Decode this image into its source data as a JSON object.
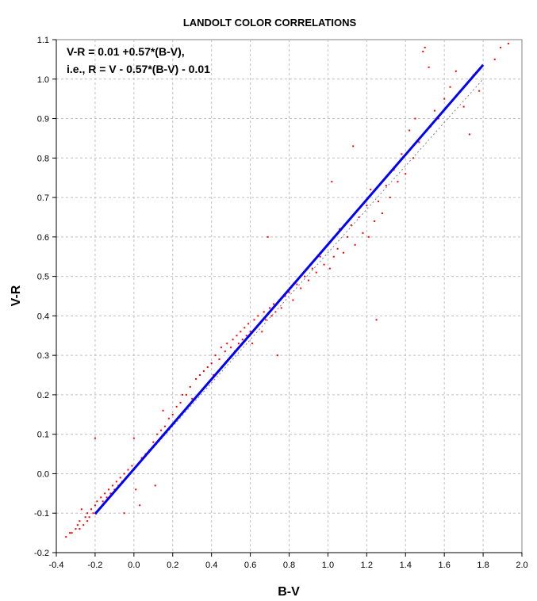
{
  "chart_data": {
    "type": "scatter",
    "title": "LANDOLT COLOR CORRELATIONS",
    "xlabel": "B-V",
    "ylabel": "V-R",
    "xlim": [
      -0.4,
      2.0
    ],
    "ylim": [
      -0.2,
      1.1
    ],
    "x_ticks": [
      "-0.4",
      "-0.2",
      "0.0",
      "0.2",
      "0.4",
      "0.6",
      "0.8",
      "1.0",
      "1.2",
      "1.4",
      "1.6",
      "1.8",
      "2.0"
    ],
    "y_ticks": [
      "-0.2",
      "-0.1",
      "0.0",
      "0.1",
      "0.2",
      "0.3",
      "0.4",
      "0.5",
      "0.6",
      "0.7",
      "0.8",
      "0.9",
      "1.0",
      "1.1"
    ],
    "grid": true,
    "annotations": [
      "V-R = 0.01 +0.57*(B-V),",
      "i.e., R = V - 0.57*(B-V) - 0.01"
    ],
    "fit_line": {
      "x": [
        -0.2,
        1.8
      ],
      "y": [
        -0.102,
        1.036
      ],
      "color": "#0000ff"
    },
    "reference_line": {
      "x": [
        -0.2,
        1.8
      ],
      "y": [
        -0.1,
        1.0
      ],
      "color": "#808080"
    },
    "series": [
      {
        "color": "#ff0000",
        "points": [
          [
            -0.35,
            -0.16
          ],
          [
            -0.33,
            -0.15
          ],
          [
            -0.32,
            -0.15
          ],
          [
            -0.3,
            -0.14
          ],
          [
            -0.29,
            -0.13
          ],
          [
            -0.28,
            -0.12
          ],
          [
            -0.28,
            -0.14
          ],
          [
            -0.27,
            -0.09
          ],
          [
            -0.26,
            -0.13
          ],
          [
            -0.25,
            -0.11
          ],
          [
            -0.24,
            -0.12
          ],
          [
            -0.24,
            -0.1
          ],
          [
            -0.23,
            -0.11
          ],
          [
            -0.22,
            -0.09
          ],
          [
            -0.21,
            -0.1
          ],
          [
            -0.2,
            -0.08
          ],
          [
            -0.2,
            0.09
          ],
          [
            -0.19,
            -0.07
          ],
          [
            -0.18,
            -0.09
          ],
          [
            -0.17,
            -0.06
          ],
          [
            -0.16,
            -0.07
          ],
          [
            -0.15,
            -0.05
          ],
          [
            -0.14,
            -0.06
          ],
          [
            -0.13,
            -0.04
          ],
          [
            -0.12,
            -0.05
          ],
          [
            -0.11,
            -0.03
          ],
          [
            -0.1,
            -0.04
          ],
          [
            -0.09,
            -0.02
          ],
          [
            -0.08,
            -0.03
          ],
          [
            -0.07,
            -0.01
          ],
          [
            -0.06,
            -0.02
          ],
          [
            -0.05,
            0.0
          ],
          [
            -0.05,
            -0.1
          ],
          [
            -0.04,
            -0.01
          ],
          [
            -0.03,
            0.01
          ],
          [
            -0.02,
            0.0
          ],
          [
            -0.01,
            0.02
          ],
          [
            0.0,
            0.01
          ],
          [
            0.0,
            0.09
          ],
          [
            0.01,
            -0.04
          ],
          [
            0.03,
            -0.08
          ],
          [
            0.04,
            0.04
          ],
          [
            0.06,
            0.05
          ],
          [
            0.08,
            0.06
          ],
          [
            0.1,
            0.08
          ],
          [
            0.11,
            -0.03
          ],
          [
            0.12,
            0.1
          ],
          [
            0.14,
            0.11
          ],
          [
            0.15,
            0.16
          ],
          [
            0.16,
            0.12
          ],
          [
            0.18,
            0.14
          ],
          [
            0.2,
            0.15
          ],
          [
            0.22,
            0.17
          ],
          [
            0.24,
            0.18
          ],
          [
            0.25,
            0.2
          ],
          [
            0.27,
            0.2
          ],
          [
            0.29,
            0.22
          ],
          [
            0.3,
            0.19
          ],
          [
            0.32,
            0.24
          ],
          [
            0.34,
            0.25
          ],
          [
            0.36,
            0.26
          ],
          [
            0.38,
            0.27
          ],
          [
            0.4,
            0.28
          ],
          [
            0.41,
            0.25
          ],
          [
            0.42,
            0.3
          ],
          [
            0.44,
            0.29
          ],
          [
            0.45,
            0.32
          ],
          [
            0.47,
            0.31
          ],
          [
            0.48,
            0.33
          ],
          [
            0.5,
            0.32
          ],
          [
            0.51,
            0.34
          ],
          [
            0.52,
            0.31
          ],
          [
            0.53,
            0.35
          ],
          [
            0.54,
            0.33
          ],
          [
            0.55,
            0.36
          ],
          [
            0.56,
            0.34
          ],
          [
            0.57,
            0.37
          ],
          [
            0.58,
            0.35
          ],
          [
            0.59,
            0.38
          ],
          [
            0.6,
            0.36
          ],
          [
            0.61,
            0.33
          ],
          [
            0.62,
            0.39
          ],
          [
            0.63,
            0.37
          ],
          [
            0.64,
            0.4
          ],
          [
            0.65,
            0.38
          ],
          [
            0.66,
            0.36
          ],
          [
            0.67,
            0.41
          ],
          [
            0.68,
            0.39
          ],
          [
            0.69,
            0.6
          ],
          [
            0.7,
            0.42
          ],
          [
            0.71,
            0.4
          ],
          [
            0.72,
            0.43
          ],
          [
            0.73,
            0.41
          ],
          [
            0.74,
            0.3
          ],
          [
            0.75,
            0.44
          ],
          [
            0.76,
            0.42
          ],
          [
            0.78,
            0.45
          ],
          [
            0.8,
            0.46
          ],
          [
            0.82,
            0.44
          ],
          [
            0.84,
            0.48
          ],
          [
            0.86,
            0.47
          ],
          [
            0.88,
            0.5
          ],
          [
            0.9,
            0.49
          ],
          [
            0.92,
            0.52
          ],
          [
            0.94,
            0.51
          ],
          [
            0.96,
            0.55
          ],
          [
            0.98,
            0.53
          ],
          [
            1.0,
            0.58
          ],
          [
            1.01,
            0.52
          ],
          [
            1.02,
            0.74
          ],
          [
            1.03,
            0.55
          ],
          [
            1.05,
            0.57
          ],
          [
            1.06,
            0.62
          ],
          [
            1.08,
            0.56
          ],
          [
            1.1,
            0.6
          ],
          [
            1.12,
            0.63
          ],
          [
            1.13,
            0.83
          ],
          [
            1.14,
            0.58
          ],
          [
            1.16,
            0.65
          ],
          [
            1.18,
            0.61
          ],
          [
            1.2,
            0.68
          ],
          [
            1.21,
            0.6
          ],
          [
            1.22,
            0.72
          ],
          [
            1.24,
            0.64
          ],
          [
            1.25,
            0.39
          ],
          [
            1.26,
            0.69
          ],
          [
            1.28,
            0.66
          ],
          [
            1.3,
            0.73
          ],
          [
            1.32,
            0.7
          ],
          [
            1.34,
            0.77
          ],
          [
            1.36,
            0.74
          ],
          [
            1.38,
            0.81
          ],
          [
            1.4,
            0.76
          ],
          [
            1.42,
            0.87
          ],
          [
            1.44,
            0.8
          ],
          [
            1.45,
            0.9
          ],
          [
            1.47,
            0.84
          ],
          [
            1.49,
            1.07
          ],
          [
            1.5,
            1.08
          ],
          [
            1.52,
            1.03
          ],
          [
            1.53,
            0.88
          ],
          [
            1.55,
            0.92
          ],
          [
            1.57,
            0.9
          ],
          [
            1.6,
            0.95
          ],
          [
            1.63,
            0.98
          ],
          [
            1.66,
            1.02
          ],
          [
            1.7,
            0.93
          ],
          [
            1.73,
            0.86
          ],
          [
            1.75,
            1.01
          ],
          [
            1.78,
            0.97
          ],
          [
            1.86,
            1.05
          ],
          [
            1.89,
            1.08
          ],
          [
            1.93,
            1.09
          ]
        ]
      }
    ]
  }
}
